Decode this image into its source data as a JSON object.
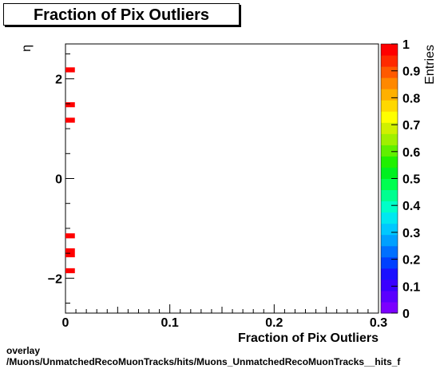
{
  "chart_data": {
    "type": "heatmap",
    "title": "Fraction of Pix Outliers",
    "xlabel": "Fraction of Pix Outliers",
    "ylabel": "η",
    "zlabel": "Entries",
    "xlim": [
      0,
      0.3
    ],
    "ylim": [
      -2.7,
      2.7
    ],
    "zlim": [
      0,
      1
    ],
    "x_ticks": [
      "0",
      "0.1",
      "0.2",
      "0.3"
    ],
    "y_ticks": [
      "−2",
      "0",
      "2"
    ],
    "z_ticks": [
      "0",
      "0.1",
      "0.2",
      "0.3",
      "0.4",
      "0.5",
      "0.6",
      "0.7",
      "0.8",
      "0.9",
      "1"
    ],
    "cells": [
      {
        "x0": 0.0,
        "x1": 0.009,
        "y0": 2.13,
        "y1": 2.23,
        "value": 1
      },
      {
        "x0": 0.0,
        "x1": 0.009,
        "y0": 1.43,
        "y1": 1.53,
        "value": 1
      },
      {
        "x0": 0.0,
        "x1": 0.009,
        "y0": 1.12,
        "y1": 1.22,
        "value": 1
      },
      {
        "x0": 0.0,
        "x1": 0.009,
        "y0": -1.2,
        "y1": -1.1,
        "value": 1
      },
      {
        "x0": 0.0,
        "x1": 0.009,
        "y0": -1.58,
        "y1": -1.4,
        "value": 1
      },
      {
        "x0": 0.0,
        "x1": 0.009,
        "y0": -1.9,
        "y1": -1.8,
        "value": 1
      }
    ],
    "palette": [
      "#7b00ff",
      "#5a00ff",
      "#3a00ff",
      "#1a10ff",
      "#0040ff",
      "#0070ff",
      "#00a0ff",
      "#00c8ff",
      "#00e8f0",
      "#00ffc8",
      "#00ff90",
      "#00ff50",
      "#00f020",
      "#20f000",
      "#60f000",
      "#a0f000",
      "#d0f000",
      "#ffff00",
      "#ffd800",
      "#ffb000",
      "#ff8800",
      "#ff5a00",
      "#ff2a00",
      "#ff0000"
    ]
  },
  "footer": {
    "line1": "overlay",
    "line2": "/Muons/UnmatchedRecoMuonTracks/hits/Muons_UnmatchedRecoMuonTracks__hits_f"
  }
}
